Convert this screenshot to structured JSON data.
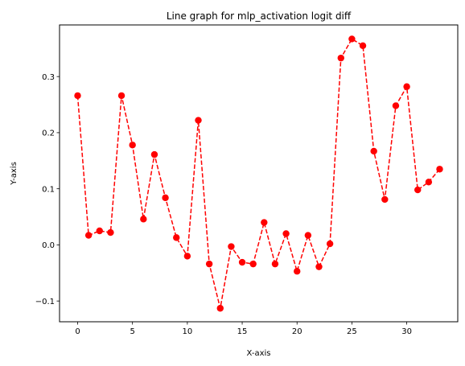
{
  "chart_data": {
    "type": "line",
    "title": "Line graph for mlp_activation logit diff",
    "xlabel": "X-axis",
    "ylabel": "Y-axis",
    "xlim": [
      -1.65,
      34.65
    ],
    "ylim": [
      -0.137,
      0.392
    ],
    "xticks": [
      0,
      5,
      10,
      15,
      20,
      25,
      30
    ],
    "yticks": [
      -0.1,
      0.0,
      0.1,
      0.2,
      0.3
    ],
    "ytick_labels": [
      "−0.1",
      "0.0",
      "0.1",
      "0.2",
      "0.3"
    ],
    "grid": false,
    "series": [
      {
        "color": "#ff0000",
        "line_style": "dashed",
        "marker": "circle",
        "x": [
          0,
          1,
          2,
          3,
          4,
          5,
          6,
          7,
          8,
          9,
          10,
          11,
          12,
          13,
          14,
          15,
          16,
          17,
          18,
          19,
          20,
          21,
          22,
          23,
          24,
          25,
          26,
          27,
          28,
          29,
          30,
          31,
          32,
          33
        ],
        "y": [
          0.266,
          0.017,
          0.025,
          0.022,
          0.266,
          0.178,
          0.046,
          0.161,
          0.084,
          0.013,
          -0.02,
          0.222,
          -0.034,
          -0.113,
          -0.003,
          -0.031,
          -0.034,
          0.04,
          -0.034,
          0.02,
          -0.047,
          0.017,
          -0.039,
          0.002,
          0.333,
          0.367,
          0.355,
          0.167,
          0.081,
          0.248,
          0.282,
          0.098,
          0.112,
          0.135
        ]
      }
    ]
  }
}
